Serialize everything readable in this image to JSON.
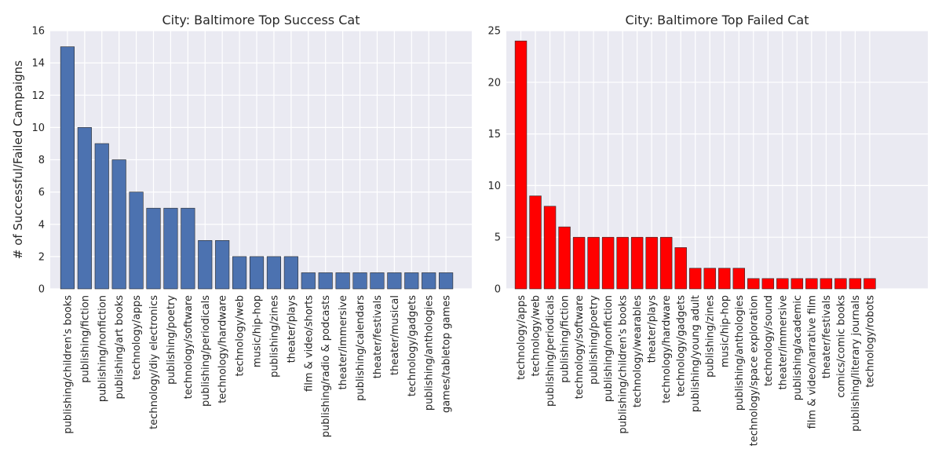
{
  "chart_data": [
    {
      "type": "bar",
      "title": "City: Baltimore Top Success Cat",
      "xlabel": "",
      "ylabel": "# of Successful/Failed Campaigns",
      "ylim": [
        0,
        16
      ],
      "yticks": [
        0,
        2,
        4,
        6,
        8,
        10,
        12,
        14,
        16
      ],
      "grid": true,
      "color": "#4c72b0",
      "categories": [
        "publishing/children's books",
        "publishing/fiction",
        "publishing/nonfiction",
        "publishing/art books",
        "technology/apps",
        "technology/diy electronics",
        "publishing/poetry",
        "technology/software",
        "publishing/periodicals",
        "technology/hardware",
        "technology/web",
        "music/hip-hop",
        "publishing/zines",
        "theater/plays",
        "film & video/shorts",
        "publishing/radio & podcasts",
        "theater/immersive",
        "publishing/calendars",
        "theater/festivals",
        "theater/musical",
        "technology/gadgets",
        "publishing/anthologies",
        "games/tabletop games"
      ],
      "values": [
        15,
        10,
        9,
        8,
        6,
        5,
        5,
        5,
        3,
        3,
        2,
        2,
        2,
        2,
        1,
        1,
        1,
        1,
        1,
        1,
        1,
        1,
        1
      ]
    },
    {
      "type": "bar",
      "title": "City: Baltimore Top Failed Cat",
      "xlabel": "",
      "ylabel": "",
      "ylim": [
        0,
        25
      ],
      "yticks": [
        0,
        5,
        10,
        15,
        20,
        25
      ],
      "grid": true,
      "color": "#ff0000",
      "categories": [
        "technology/apps",
        "technology/web",
        "publishing/periodicals",
        "publishing/fiction",
        "technology/software",
        "publishing/poetry",
        "publishing/nonfiction",
        "publishing/children's books",
        "technology/wearables",
        "theater/plays",
        "technology/hardware",
        "technology/gadgets",
        "publishing/young adult",
        "publishing/zines",
        "music/hip-hop",
        "publishing/anthologies",
        "technology/space exploration",
        "technology/sound",
        "theater/immersive",
        "publishing/academic",
        "film & video/narrative film",
        "theater/festivals",
        "comics/comic books",
        "publishing/literary journals",
        "technology/robots"
      ],
      "values": [
        24,
        9,
        8,
        6,
        5,
        5,
        5,
        5,
        5,
        5,
        5,
        4,
        2,
        2,
        2,
        2,
        1,
        1,
        1,
        1,
        1,
        1,
        1,
        1,
        1
      ]
    }
  ]
}
